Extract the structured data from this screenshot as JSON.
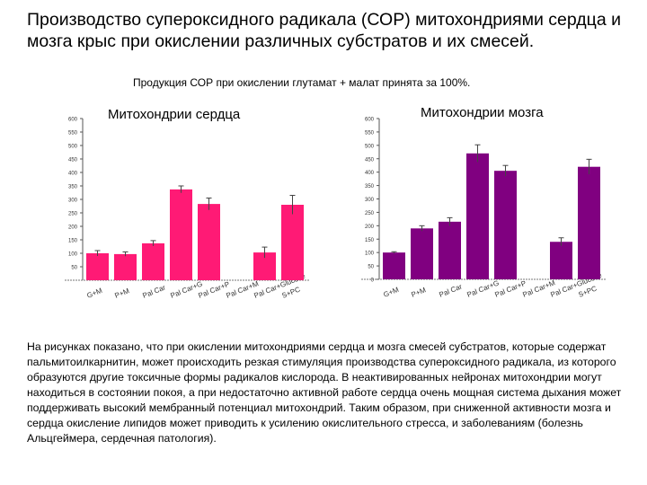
{
  "title": "Производство супероксидного радикала (СОР) митохондриями сердца и мозга крыс при окислении различных субстратов и их смесей.",
  "subtitle": "Продукция СОР при окислении глутамат + малат принята за 100%.",
  "body_text": "На рисунках показано, что при окислении митохондриями сердца и мозга смесей субстратов, которые содержат пальмитоилкарнитин, может происходить резкая стимуляция производства супероксидного радикала, из которого образуются другие токсичные формы радикалов кислорода. В неактивированных нейронах митохондрии могут находиться в состоянии покоя, а при недостаточно активной работе сердца очень мощная система дыхания может поддерживать высокий мембранный потенциал митохондрий. Таким образом, при сниженной активности мозга и сердца окисление липидов может приводить к усилению окислительного стресса, и заболеваниям (болезнь Альцгеймера, сердечная патология).",
  "chart_data": [
    {
      "type": "bar",
      "title": "Митохондрии сердца",
      "color": "#ff1a75",
      "ylim": [
        0,
        600
      ],
      "yticks": [
        50,
        100,
        150,
        200,
        250,
        300,
        350,
        400,
        450,
        500,
        550,
        600
      ],
      "categories": [
        "G+M",
        "P+M",
        "PalCar",
        "PalCar+G",
        "PalCar+P",
        "PalCar+M",
        "PalCar+Glucose",
        "S+PC"
      ],
      "category_labels": [
        "G+M",
        "P+M",
        "Pal Car",
        "Pal Car+G",
        "Pal Car+P",
        "Pal Car+M",
        "Pal Car+Glucose",
        "S+PC"
      ],
      "values": [
        100,
        97,
        137,
        337,
        283,
        0,
        103,
        280
      ],
      "errors": [
        10,
        8,
        10,
        13,
        22,
        0,
        20,
        35
      ]
    },
    {
      "type": "bar",
      "title": "Митохондрии мозга",
      "color": "#800080",
      "ylim": [
        0,
        600
      ],
      "yticks": [
        0,
        50,
        100,
        150,
        200,
        250,
        300,
        350,
        400,
        450,
        500,
        550,
        600
      ],
      "categories": [
        "G+M",
        "P+M",
        "PalCar",
        "PalCar+G",
        "PalCar+P",
        "PalCar+M",
        "PalCar+Glucose",
        "S+PC"
      ],
      "category_labels": [
        "G+M",
        "P+M",
        "Pal Car",
        "Pal Car+G",
        "Pal Car+P",
        "Pal Car+M",
        "Pal Car+Glucose",
        "S+PC"
      ],
      "values": [
        100,
        190,
        215,
        470,
        405,
        0,
        140,
        420
      ],
      "errors": [
        3,
        10,
        15,
        32,
        20,
        0,
        15,
        28
      ]
    }
  ]
}
